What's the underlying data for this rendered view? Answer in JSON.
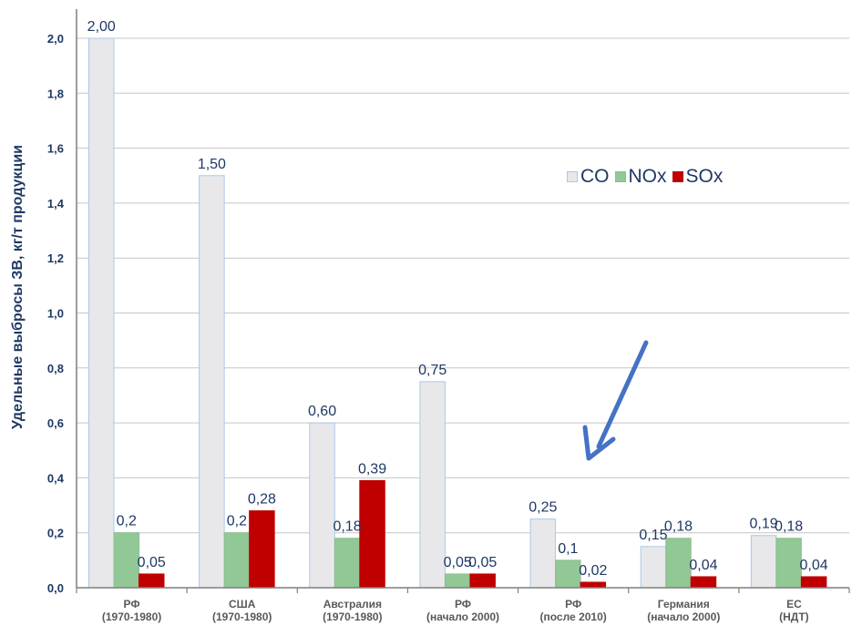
{
  "chart_data": {
    "type": "bar",
    "ylabel": "Удельные выбросы ЗВ, кг/т продукции",
    "ylim": [
      0,
      2.0
    ],
    "yticks": [
      "0,0",
      "0,2",
      "0,4",
      "0,6",
      "0,8",
      "1,0",
      "1,2",
      "1,4",
      "1,6",
      "1,8",
      "2,0"
    ],
    "legend_position": "top-right",
    "categories": [
      [
        "РФ",
        "(1970-1980)"
      ],
      [
        "США",
        "(1970-1980)"
      ],
      [
        "Австралия",
        "(1970-1980)"
      ],
      [
        "РФ",
        "(начало 2000)"
      ],
      [
        "РФ",
        "(после 2010)"
      ],
      [
        "Германия",
        "(начало 2000)"
      ],
      [
        "ЕС",
        "(НДТ)"
      ]
    ],
    "series": [
      {
        "name": "CO",
        "color": "#e8e8ea",
        "border": "#a9c8e8",
        "values": [
          2.0,
          1.5,
          0.6,
          0.75,
          0.25,
          0.15,
          0.19
        ],
        "labels": [
          "2,00",
          "1,50",
          "0,60",
          "0,75",
          "0,25",
          "0,15",
          "0,19"
        ]
      },
      {
        "name": "NOx",
        "color": "#92c796",
        "border": "#8cc08e",
        "values": [
          0.2,
          0.2,
          0.18,
          0.05,
          0.1,
          0.18,
          0.18
        ],
        "labels": [
          "0,2",
          "0,2",
          "0,18",
          "0,05",
          "0,1",
          "0,18",
          "0,18"
        ]
      },
      {
        "name": "SOx",
        "color": "#c00000",
        "border": "#c00000",
        "values": [
          0.05,
          0.28,
          0.39,
          0.05,
          0.02,
          0.04,
          0.04
        ],
        "labels": [
          "0,05",
          "0,28",
          "0,39",
          "0,05",
          "0,02",
          "0,04",
          "0,04"
        ]
      }
    ],
    "annotation": {
      "type": "arrow",
      "color": "#4472c4",
      "points_to": "РФ (после 2010)"
    }
  }
}
